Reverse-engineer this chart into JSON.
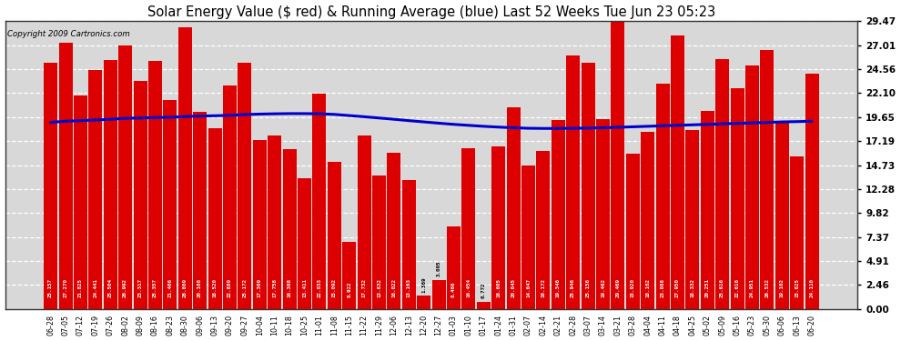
{
  "title": "Solar Energy Value ($ red) & Running Average (blue) Last 52 Weeks Tue Jun 23 05:23",
  "copyright": "Copyright 2009 Cartronics.com",
  "bar_color": "#dd0000",
  "avg_line_color": "#0000cc",
  "background_color": "#ffffff",
  "plot_bg_color": "#d8d8d8",
  "grid_color": "#ffffff",
  "categories": [
    "06-28",
    "07-05",
    "07-12",
    "07-19",
    "07-26",
    "08-02",
    "08-09",
    "08-16",
    "08-23",
    "08-30",
    "09-06",
    "09-13",
    "09-20",
    "09-27",
    "10-04",
    "10-11",
    "10-18",
    "10-25",
    "11-01",
    "11-08",
    "11-15",
    "11-22",
    "11-29",
    "12-06",
    "12-13",
    "12-20",
    "12-27",
    "01-03",
    "01-10",
    "01-17",
    "01-24",
    "01-31",
    "02-07",
    "02-14",
    "02-21",
    "02-28",
    "03-07",
    "03-14",
    "03-21",
    "03-28",
    "04-04",
    "04-11",
    "04-18",
    "04-25",
    "05-02",
    "05-09",
    "05-16",
    "05-23",
    "05-30",
    "06-06",
    "06-13",
    "06-20"
  ],
  "values": [
    25.157,
    27.27,
    21.825,
    24.441,
    25.504,
    26.992,
    23.317,
    25.357,
    21.406,
    28.809,
    20.186,
    18.52,
    22.889,
    25.172,
    17.309,
    17.758,
    16.368,
    13.411,
    22.033,
    15.092,
    6.922,
    17.732,
    13.632,
    16.022,
    13.163,
    1.369,
    3.005,
    8.466,
    16.454,
    0.772,
    16.605,
    20.645,
    14.647,
    16.172,
    19.346,
    25.946,
    25.156,
    19.462,
    29.469,
    15.92,
    18.102,
    23.088,
    27.95,
    18.332,
    20.251,
    25.616,
    22.616,
    24.951,
    26.532,
    19.102,
    15.625,
    24.11
  ],
  "running_avg": [
    19.1,
    19.22,
    19.28,
    19.35,
    19.42,
    19.52,
    19.55,
    19.6,
    19.62,
    19.7,
    19.75,
    19.78,
    19.82,
    19.9,
    19.95,
    19.98,
    20.0,
    20.0,
    19.98,
    19.92,
    19.8,
    19.68,
    19.55,
    19.42,
    19.28,
    19.15,
    19.02,
    18.9,
    18.8,
    18.7,
    18.62,
    18.55,
    18.5,
    18.48,
    18.48,
    18.5,
    18.52,
    18.55,
    18.6,
    18.65,
    18.7,
    18.75,
    18.8,
    18.85,
    18.9,
    18.95,
    19.0,
    19.05,
    19.1,
    19.15,
    19.18,
    19.22
  ],
  "ylim": [
    0.0,
    29.47
  ],
  "yticks": [
    0.0,
    2.46,
    4.91,
    7.37,
    9.82,
    12.28,
    14.73,
    17.19,
    19.65,
    22.1,
    24.56,
    27.01,
    29.47
  ]
}
